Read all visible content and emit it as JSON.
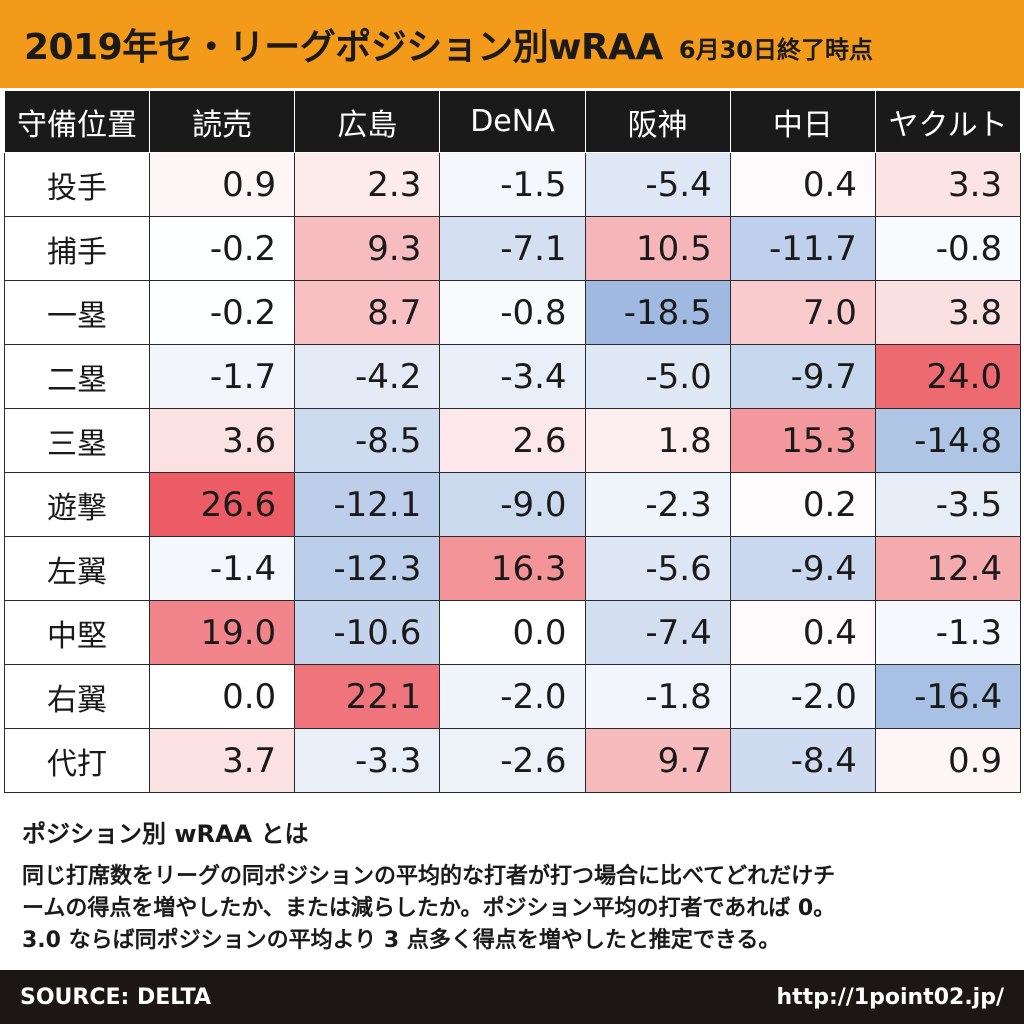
{
  "title": {
    "main": "2019年セ・リーグポジション別wRAA",
    "sub": "6月30日終了時点"
  },
  "chart_data": {
    "type": "table",
    "title": "2019年セ・リーグポジション別wRAA",
    "subtitle": "6月30日終了時点",
    "corner_label": "守備位置",
    "columns": [
      "読売",
      "広島",
      "DeNA",
      "阪神",
      "中日",
      "ヤクルト"
    ],
    "rows": [
      {
        "label": "投手",
        "values": [
          "0.9",
          "2.3",
          "-1.5",
          "-5.4",
          "0.4",
          "3.3"
        ]
      },
      {
        "label": "捕手",
        "values": [
          "-0.2",
          "9.3",
          "-7.1",
          "10.5",
          "-11.7",
          "-0.8"
        ]
      },
      {
        "label": "一塁",
        "values": [
          "-0.2",
          "8.7",
          "-0.8",
          "-18.5",
          "7.0",
          "3.8"
        ]
      },
      {
        "label": "二塁",
        "values": [
          "-1.7",
          "-4.2",
          "-3.4",
          "-5.0",
          "-9.7",
          "24.0"
        ]
      },
      {
        "label": "三塁",
        "values": [
          "3.6",
          "-8.5",
          "2.6",
          "1.8",
          "15.3",
          "-14.8"
        ]
      },
      {
        "label": "遊撃",
        "values": [
          "26.6",
          "-12.1",
          "-9.0",
          "-2.3",
          "0.2",
          "-3.5"
        ]
      },
      {
        "label": "左翼",
        "values": [
          "-1.4",
          "-12.3",
          "16.3",
          "-5.6",
          "-9.4",
          "12.4"
        ]
      },
      {
        "label": "中堅",
        "values": [
          "19.0",
          "-10.6",
          "0.0",
          "-7.4",
          "0.4",
          "-1.3"
        ]
      },
      {
        "label": "右翼",
        "values": [
          "0.0",
          "22.1",
          "-2.0",
          "-1.8",
          "-2.0",
          "-16.4"
        ]
      },
      {
        "label": "代打",
        "values": [
          "3.7",
          "-3.3",
          "-2.6",
          "9.7",
          "-8.4",
          "0.9"
        ]
      }
    ],
    "color_scale": {
      "negative": "#7a9fd6",
      "neutral": "#ffffff",
      "positive": "#ec5a62",
      "abs_max": 27
    }
  },
  "note": {
    "title": "ポジション別 wRAA とは",
    "lines": [
      "同じ打席数をリーグの同ポジションの平均的な打者が打つ場合に比べてどれだけチ",
      "ームの得点を増やしたか、または減らしたか。ポジション平均の打者であれば 0。",
      "3.0 ならば同ポジションの平均より 3 点多く得点を増やしたと推定できる。"
    ]
  },
  "footer": {
    "source": "SOURCE: DELTA",
    "url": "http://1point02.jp/"
  }
}
